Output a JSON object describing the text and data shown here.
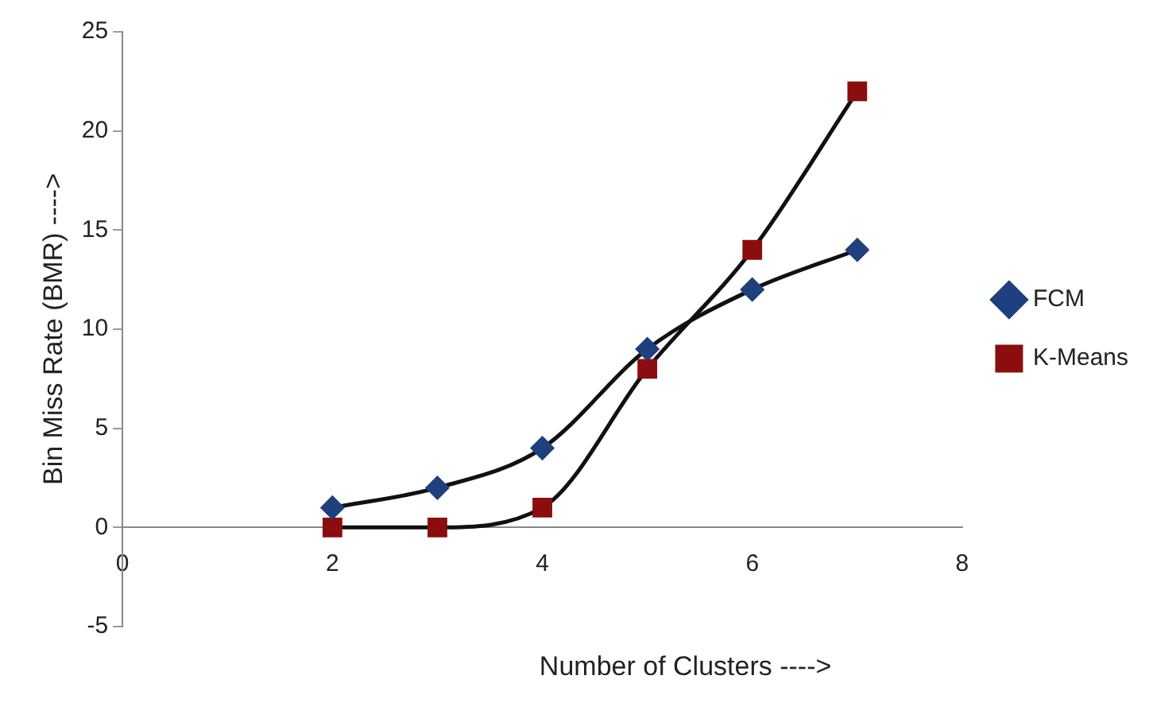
{
  "chart_data": {
    "type": "line",
    "xlabel": "Number of Clusters ---->",
    "ylabel": "Bin Miss Rate (BMR) ---->",
    "x": [
      2,
      3,
      4,
      5,
      6,
      7
    ],
    "series": [
      {
        "name": "FCM",
        "color": "#1f3f7f",
        "marker": "diamond",
        "values": [
          1,
          2,
          4,
          9,
          12,
          14
        ]
      },
      {
        "name": "K-Means",
        "color": "#8b0d0d",
        "marker": "square",
        "values": [
          0,
          0,
          1,
          8,
          14,
          22
        ]
      }
    ],
    "xlim": [
      0,
      8
    ],
    "xticks": [
      0,
      2,
      4,
      6,
      8
    ],
    "ylim": [
      -5,
      25
    ],
    "yticks": [
      -5,
      0,
      5,
      10,
      15,
      20,
      25
    ],
    "grid": false,
    "legend": "right"
  }
}
